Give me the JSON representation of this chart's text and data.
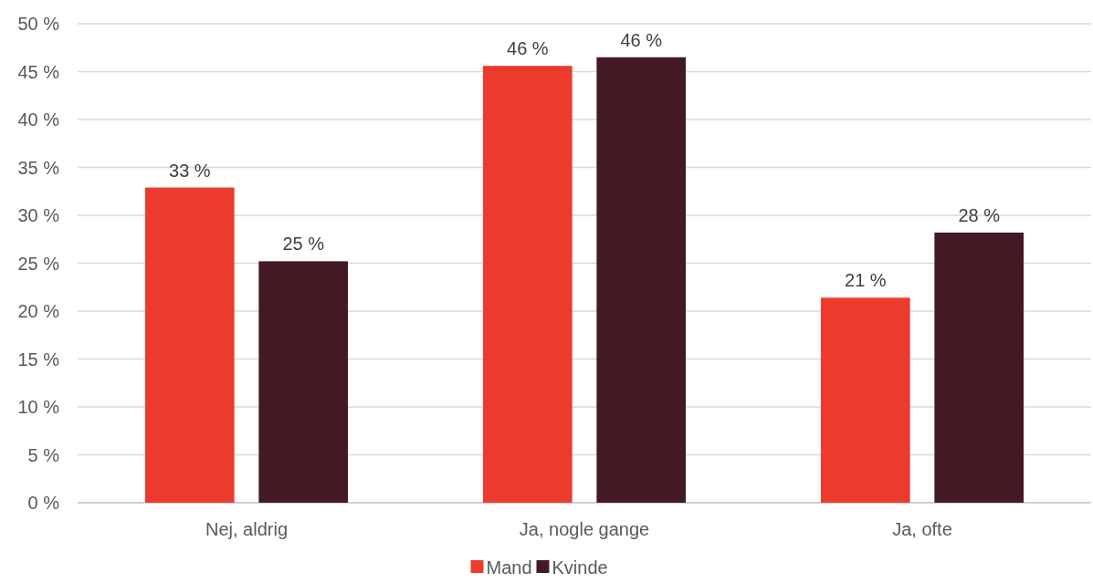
{
  "chart_data": {
    "type": "bar",
    "categories": [
      "Nej, aldrig",
      "Ja, nogle gange",
      "Ja, ofte"
    ],
    "series": [
      {
        "name": "Mand",
        "color": "#ec3b2d",
        "values": [
          32.9,
          45.6,
          21.4
        ],
        "value_labels": [
          "33 %",
          "46 %",
          "21 %"
        ]
      },
      {
        "name": "Kvinde",
        "color": "#431924",
        "values": [
          25.2,
          46.5,
          28.2
        ],
        "value_labels": [
          "25 %",
          "46 %",
          "28 %"
        ]
      }
    ],
    "ylim": [
      0,
      50
    ],
    "yticks": [
      {
        "value": 0,
        "label": "0 %"
      },
      {
        "value": 5,
        "label": "5 %"
      },
      {
        "value": 10,
        "label": "10 %"
      },
      {
        "value": 15,
        "label": "15 %"
      },
      {
        "value": 20,
        "label": "20 %"
      },
      {
        "value": 25,
        "label": "25 %"
      },
      {
        "value": 30,
        "label": "30 %"
      },
      {
        "value": 35,
        "label": "35 %"
      },
      {
        "value": 40,
        "label": "40 %"
      },
      {
        "value": 45,
        "label": "45 %"
      },
      {
        "value": 50,
        "label": "50 %"
      }
    ],
    "grid": "y",
    "legend": "bottom"
  }
}
